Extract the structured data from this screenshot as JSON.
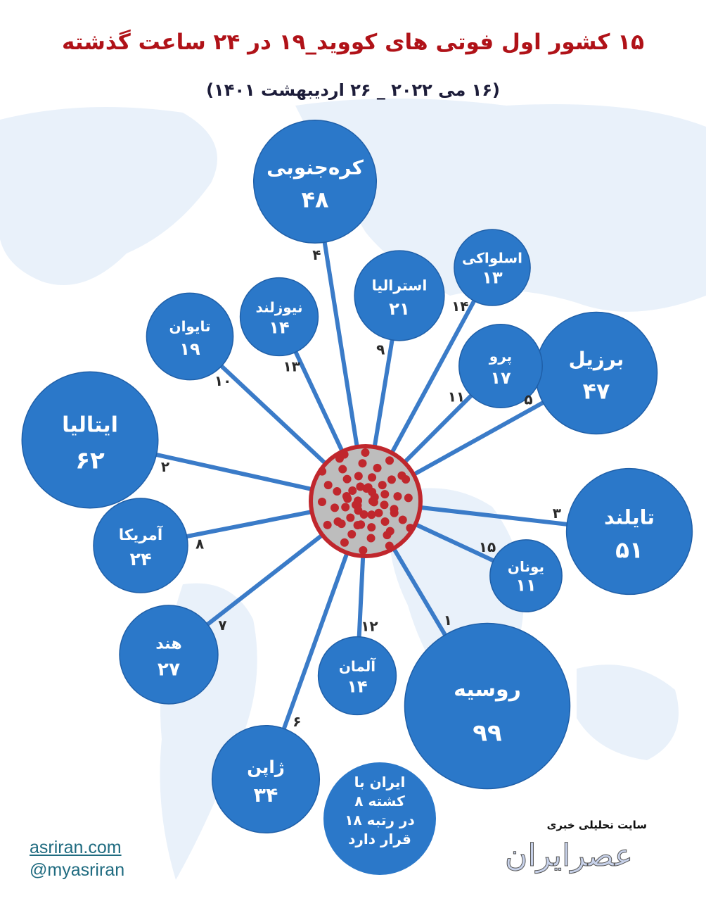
{
  "title": "۱۵ کشور اول فوتی های کووید_۱۹ در ۲۴ ساعت گذشته",
  "subtitle": "(۱۶ می ۲۰۲۲ _ ۲۶ اردیبهشت ۱۴۰۱)",
  "colors": {
    "bubble": "#2b78c9",
    "line": "#3a7bc8",
    "title": "#b01218",
    "virus": "#c0272d"
  },
  "chart_data": {
    "type": "bubble",
    "title": "۱۵ کشور اول فوتی های کووید_۱۹ در ۲۴ ساعت گذشته",
    "subtitle": "(۱۶ می ۲۰۲۲ _ ۲۶ اردیبهشت ۱۴۰۱)",
    "series": [
      {
        "rank": 1,
        "country": "روسیه",
        "value": 99
      },
      {
        "rank": 2,
        "country": "ایتالیا",
        "value": 62
      },
      {
        "rank": 3,
        "country": "تایلند",
        "value": 51
      },
      {
        "rank": 4,
        "country": "کره‌جنوبی",
        "value": 48
      },
      {
        "rank": 5,
        "country": "برزیل",
        "value": 47
      },
      {
        "rank": 6,
        "country": "ژاپن",
        "value": 34
      },
      {
        "rank": 7,
        "country": "هند",
        "value": 27
      },
      {
        "rank": 8,
        "country": "آمریکا",
        "value": 24
      },
      {
        "rank": 9,
        "country": "استرالیا",
        "value": 21
      },
      {
        "rank": 10,
        "country": "تایوان",
        "value": 19
      },
      {
        "rank": 11,
        "country": "پرو",
        "value": 17
      },
      {
        "rank": 12,
        "country": "آلمان",
        "value": 14
      },
      {
        "rank": 13,
        "country": "نیوزلند",
        "value": 14
      },
      {
        "rank": 14,
        "country": "اسلواکی",
        "value": 13
      },
      {
        "rank": 15,
        "country": "یونان",
        "value": 11
      }
    ],
    "annotation": [
      "ایران با",
      "۸ کشته",
      "در رتبه ۱۸",
      "قرار دارد"
    ]
  },
  "footer": {
    "site": "asriran.com",
    "handle": "@myasriran",
    "brand_tagline": "سایت تحلیلی خبری",
    "brand_logo": "عصرایران"
  }
}
